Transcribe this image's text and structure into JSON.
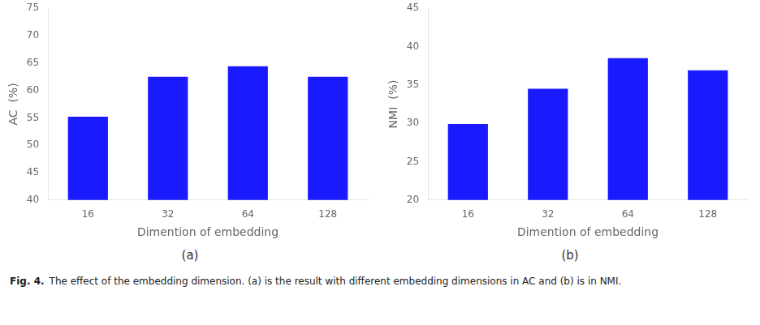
{
  "chart_data": [
    {
      "type": "bar",
      "categories": [
        "16",
        "32",
        "64",
        "128"
      ],
      "values": [
        55.2,
        62.5,
        64.4,
        62.5
      ],
      "color": "#1a1aff",
      "xlabel": "Dimention of embedding",
      "ylabel": "AC  (%)",
      "ylim": [
        40,
        75
      ],
      "yticks": [
        40,
        45,
        50,
        55,
        60,
        65,
        70,
        75
      ],
      "grid": false,
      "annotation": "(a)"
    },
    {
      "type": "bar",
      "categories": [
        "16",
        "32",
        "64",
        "128"
      ],
      "values": [
        29.9,
        34.5,
        38.5,
        36.9
      ],
      "color": "#1a1aff",
      "xlabel": "Dimention of embedding",
      "ylabel": "NMI  (%)",
      "ylim": [
        20,
        45
      ],
      "yticks": [
        20,
        25,
        30,
        35,
        40,
        45
      ],
      "grid": false,
      "annotation": "(b)"
    }
  ],
  "caption_bold": "Fig. 4.",
  "caption": "The effect of the embedding dimension. (a) is the result with different embedding dimensions in AC and (b) is in NMI."
}
